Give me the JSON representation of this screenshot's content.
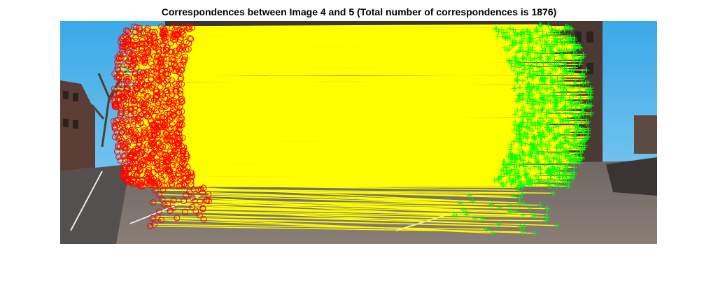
{
  "figure": {
    "title": "Correspondences between Image 4 and 5 (Total number of correspondences is 1876)"
  },
  "plot": {
    "left_marker": "red-circle",
    "right_marker": "green-plus",
    "line_color": "#ffff00",
    "left_marker_color": "#ff0000",
    "right_marker_color": "#00ff00"
  }
}
